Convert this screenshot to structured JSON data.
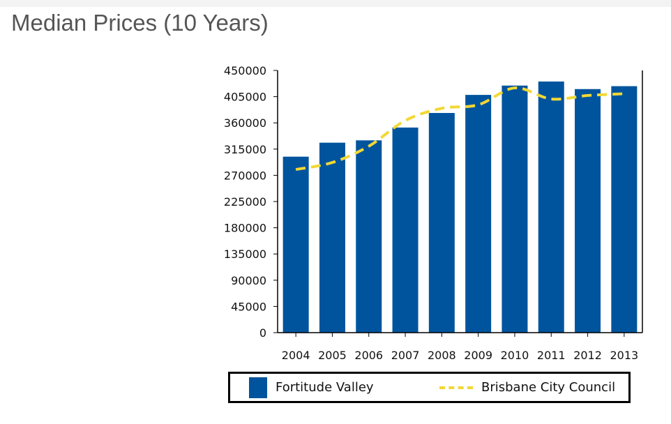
{
  "page": {
    "title": "Median Prices (10 Years)"
  },
  "colors": {
    "bar": "#00549e",
    "line": "#f2d835",
    "axis": "#000000"
  },
  "chart_data": {
    "type": "bar",
    "categories": [
      "2004",
      "2005",
      "2006",
      "2007",
      "2008",
      "2009",
      "2010",
      "2011",
      "2012",
      "2013"
    ],
    "ylim": [
      0,
      450000
    ],
    "yticks": [
      0,
      45000,
      90000,
      135000,
      180000,
      225000,
      270000,
      315000,
      360000,
      405000,
      450000
    ],
    "ytick_labels": [
      "0",
      "45000",
      "90000",
      "135000",
      "180000",
      "225000",
      "270000",
      "315000",
      "360000",
      "405000",
      "450000"
    ],
    "xlabel": "",
    "ylabel": "",
    "grid": false,
    "legend_position": "bottom",
    "series": [
      {
        "name": "Fortitude Valley",
        "type": "bar",
        "values": [
          302000,
          326000,
          330000,
          352000,
          377000,
          408000,
          424000,
          431000,
          418000,
          423000
        ]
      },
      {
        "name": "Brisbane City Council",
        "type": "line",
        "style": "dashed",
        "values": [
          280000,
          292000,
          320000,
          364000,
          385000,
          391000,
          420000,
          401000,
          407000,
          410000
        ]
      }
    ]
  }
}
